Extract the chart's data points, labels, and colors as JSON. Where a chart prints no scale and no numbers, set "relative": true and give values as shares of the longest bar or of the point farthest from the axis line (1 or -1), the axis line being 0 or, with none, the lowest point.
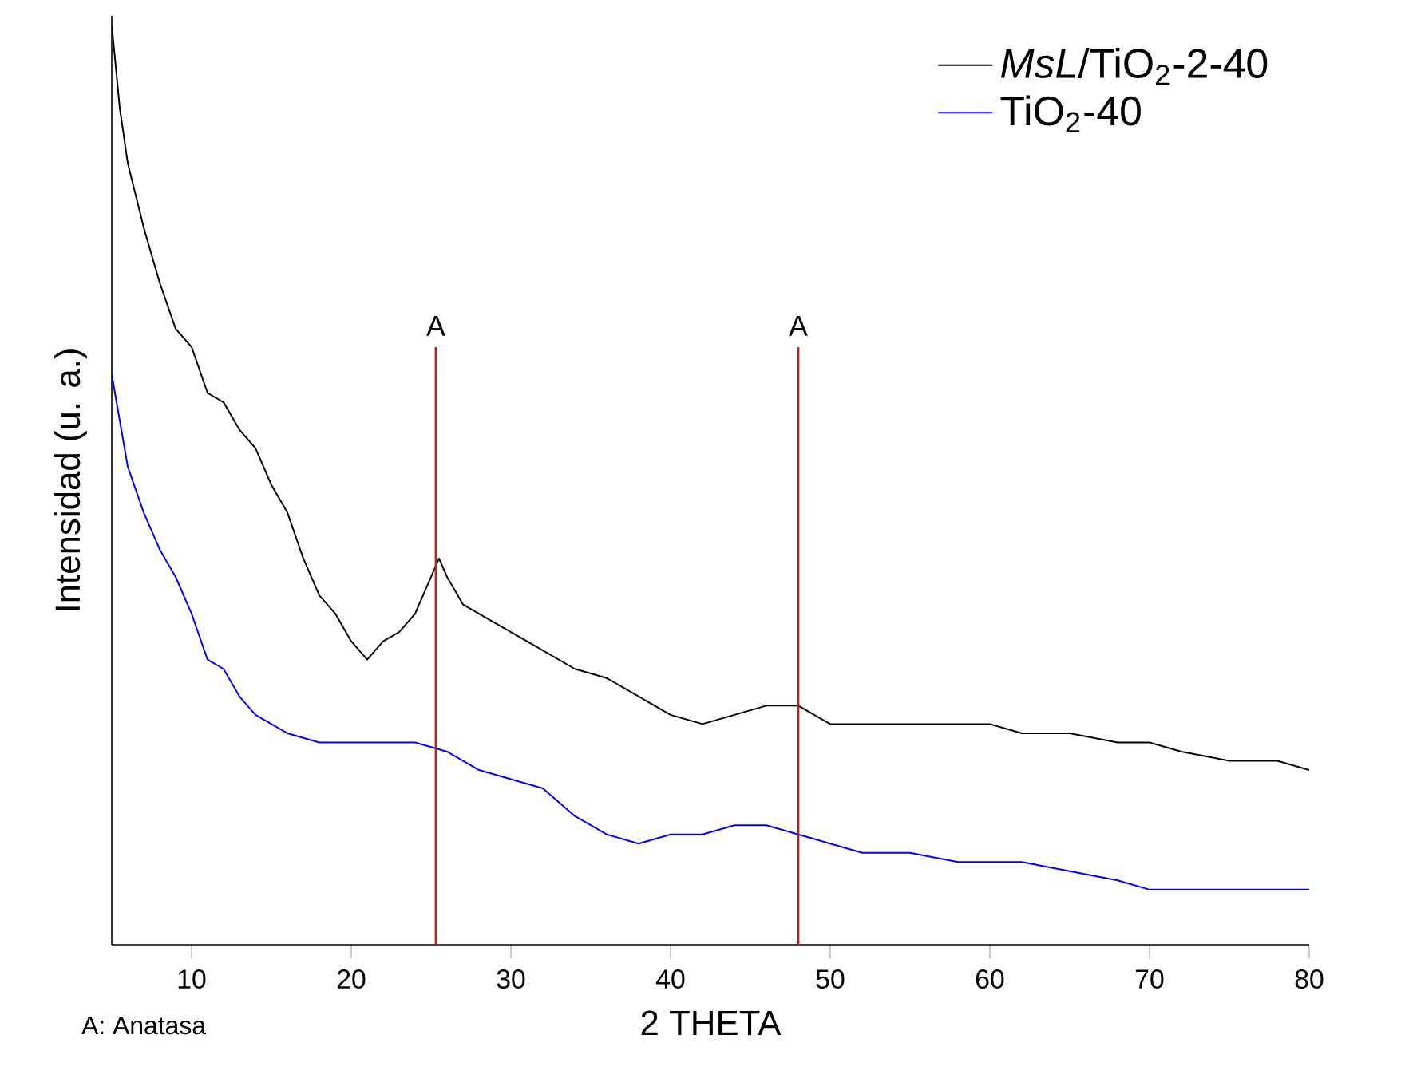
{
  "chart_data": {
    "type": "line",
    "xlabel": "2 THETA",
    "ylabel": "Intensidad (u. a.)",
    "relative": true,
    "xlim": [
      5,
      80
    ],
    "xticks": [
      10,
      20,
      30,
      40,
      50,
      60,
      70,
      80
    ],
    "legend": "top right",
    "annotations": [
      "A: Anatasa"
    ],
    "ref_lines": [
      {
        "axis": "x",
        "value": 25.3,
        "label": "A",
        "color": "#a52a2a"
      },
      {
        "axis": "x",
        "value": 48,
        "label": "A",
        "color": "#a52a2a"
      }
    ],
    "series": [
      {
        "name": "*MsL*/TiO$_{2}$-2-40",
        "color": "#000000",
        "x": [
          5,
          5.5,
          6,
          7,
          8,
          9,
          10,
          11,
          12,
          13,
          14,
          15,
          16,
          17,
          18,
          19,
          20,
          21,
          22,
          23,
          24,
          25,
          25.5,
          26,
          27,
          28,
          30,
          32,
          34,
          36,
          38,
          40,
          42,
          44,
          46,
          48,
          50,
          52,
          55,
          58,
          60,
          62,
          65,
          68,
          70,
          72,
          75,
          78,
          80
        ],
        "values": [
          1.0,
          0.91,
          0.85,
          0.78,
          0.72,
          0.67,
          0.65,
          0.6,
          0.59,
          0.56,
          0.54,
          0.5,
          0.47,
          0.42,
          0.38,
          0.36,
          0.33,
          0.31,
          0.33,
          0.34,
          0.36,
          0.4,
          0.42,
          0.4,
          0.37,
          0.36,
          0.34,
          0.32,
          0.3,
          0.29,
          0.27,
          0.25,
          0.24,
          0.25,
          0.26,
          0.26,
          0.24,
          0.24,
          0.24,
          0.24,
          0.24,
          0.23,
          0.23,
          0.22,
          0.22,
          0.21,
          0.2,
          0.2,
          0.19
        ]
      },
      {
        "name": "TiO$_{2}$-40",
        "color": "#0000ff",
        "x": [
          5,
          5.5,
          6,
          7,
          8,
          9,
          10,
          11,
          12,
          13,
          14,
          15,
          16,
          18,
          20,
          22,
          24,
          26,
          28,
          30,
          32,
          34,
          36,
          38,
          40,
          42,
          44,
          46,
          48,
          50,
          52,
          55,
          58,
          60,
          62,
          65,
          68,
          70,
          72,
          75,
          78,
          80
        ],
        "values": [
          0.62,
          0.57,
          0.52,
          0.47,
          0.43,
          0.4,
          0.36,
          0.31,
          0.3,
          0.27,
          0.25,
          0.24,
          0.23,
          0.22,
          0.22,
          0.22,
          0.22,
          0.21,
          0.19,
          0.18,
          0.17,
          0.14,
          0.12,
          0.11,
          0.12,
          0.12,
          0.13,
          0.13,
          0.12,
          0.11,
          0.1,
          0.1,
          0.09,
          0.09,
          0.09,
          0.08,
          0.07,
          0.06,
          0.06,
          0.06,
          0.06,
          0.06
        ]
      }
    ]
  }
}
